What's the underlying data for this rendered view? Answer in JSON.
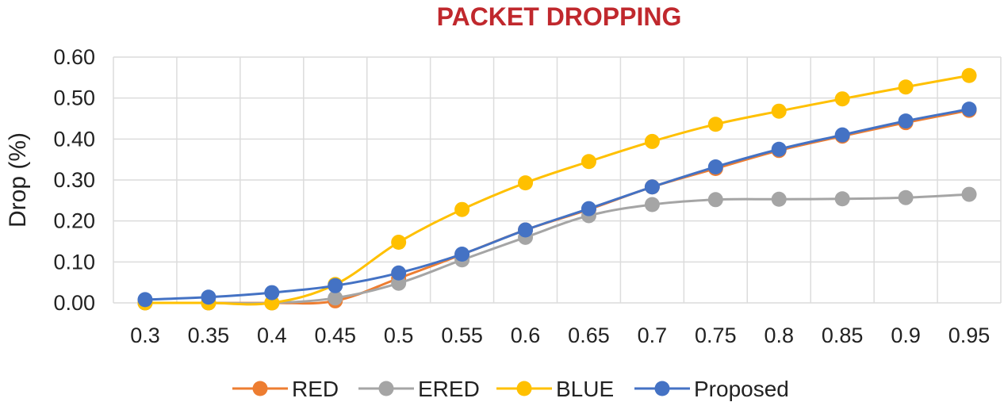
{
  "chart_data": {
    "type": "line",
    "title": "PACKET DROPPING",
    "xlabel": "",
    "ylabel": "Drop (%)",
    "categories": [
      "0.3",
      "0.35",
      "0.4",
      "0.45",
      "0.5",
      "0.55",
      "0.6",
      "0.65",
      "0.7",
      "0.75",
      "0.8",
      "0.85",
      "0.9",
      "0.95"
    ],
    "ylim": [
      0,
      0.6
    ],
    "yticks": [
      "0.00",
      "0.10",
      "0.20",
      "0.30",
      "0.40",
      "0.50",
      "0.60"
    ],
    "grid": true,
    "legend_position": "bottom",
    "series": [
      {
        "name": "RED",
        "color": "#ed7d31",
        "values": [
          0.0,
          0.0,
          0.0,
          0.005,
          0.06,
          0.118,
          0.178,
          0.228,
          0.283,
          0.328,
          0.372,
          0.407,
          0.44,
          0.47
        ]
      },
      {
        "name": "ERED",
        "color": "#a5a5a5",
        "values": [
          0.0,
          0.0,
          0.0,
          0.012,
          0.048,
          0.105,
          0.16,
          0.213,
          0.24,
          0.252,
          0.253,
          0.254,
          0.257,
          0.265
        ]
      },
      {
        "name": "BLUE",
        "color": "#ffc000",
        "values": [
          0.0,
          0.0,
          0.0,
          0.045,
          0.148,
          0.228,
          0.293,
          0.345,
          0.394,
          0.436,
          0.468,
          0.498,
          0.527,
          0.555
        ]
      },
      {
        "name": "Proposed",
        "color": "#4472c4",
        "values": [
          0.008,
          0.014,
          0.025,
          0.042,
          0.073,
          0.119,
          0.178,
          0.23,
          0.283,
          0.332,
          0.375,
          0.41,
          0.444,
          0.473
        ]
      }
    ]
  }
}
